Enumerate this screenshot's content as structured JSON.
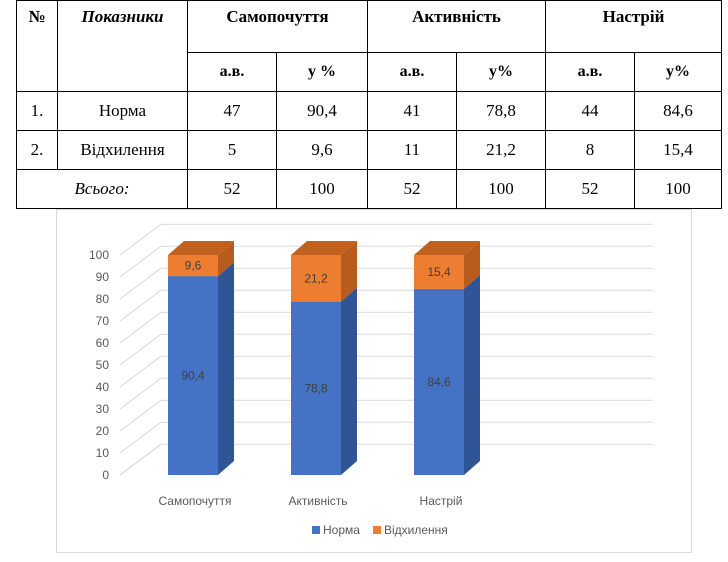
{
  "table": {
    "col_no": "№",
    "col_indicators": "Показники",
    "groups": [
      "Самопочуття",
      "Активність",
      "Настрій"
    ],
    "sub_headers": [
      "а.в.",
      "у %",
      "а.в.",
      "у%",
      "а.в.",
      "у%"
    ],
    "rows": [
      {
        "no": "1.",
        "label": "Норма",
        "cells": [
          "47",
          "90,4",
          "41",
          "78,8",
          "44",
          "84,6"
        ]
      },
      {
        "no": "2.",
        "label": "Відхилення",
        "cells": [
          "5",
          "9,6",
          "11",
          "21,2",
          "8",
          "15,4"
        ]
      }
    ],
    "total": {
      "label": "Всього:",
      "cells": [
        "52",
        "100",
        "52",
        "100",
        "52",
        "100"
      ]
    }
  },
  "chart_data": {
    "type": "bar",
    "stacked": true,
    "three_d": true,
    "categories": [
      "Самопочуття",
      "Активність",
      "Настрій"
    ],
    "series": [
      {
        "name": "Норма",
        "values": [
          90.4,
          78.8,
          84.6
        ],
        "labels": [
          "90,4",
          "78,8",
          "84,6"
        ],
        "color": "#4472c4",
        "side_color": "#2f5597",
        "top_color": "#5b87d6"
      },
      {
        "name": "Відхилення",
        "values": [
          9.6,
          21.2,
          15.4
        ],
        "labels": [
          "9,6",
          "21,2",
          "15,4"
        ],
        "color": "#ed7d31",
        "side_color": "#b85c1e",
        "top_color": "#c0611f"
      }
    ],
    "ylim": [
      0,
      100
    ],
    "y_ticks": [
      0,
      10,
      20,
      30,
      40,
      50,
      60,
      70,
      80,
      90,
      100
    ],
    "grid": true,
    "legend_position": "bottom"
  }
}
